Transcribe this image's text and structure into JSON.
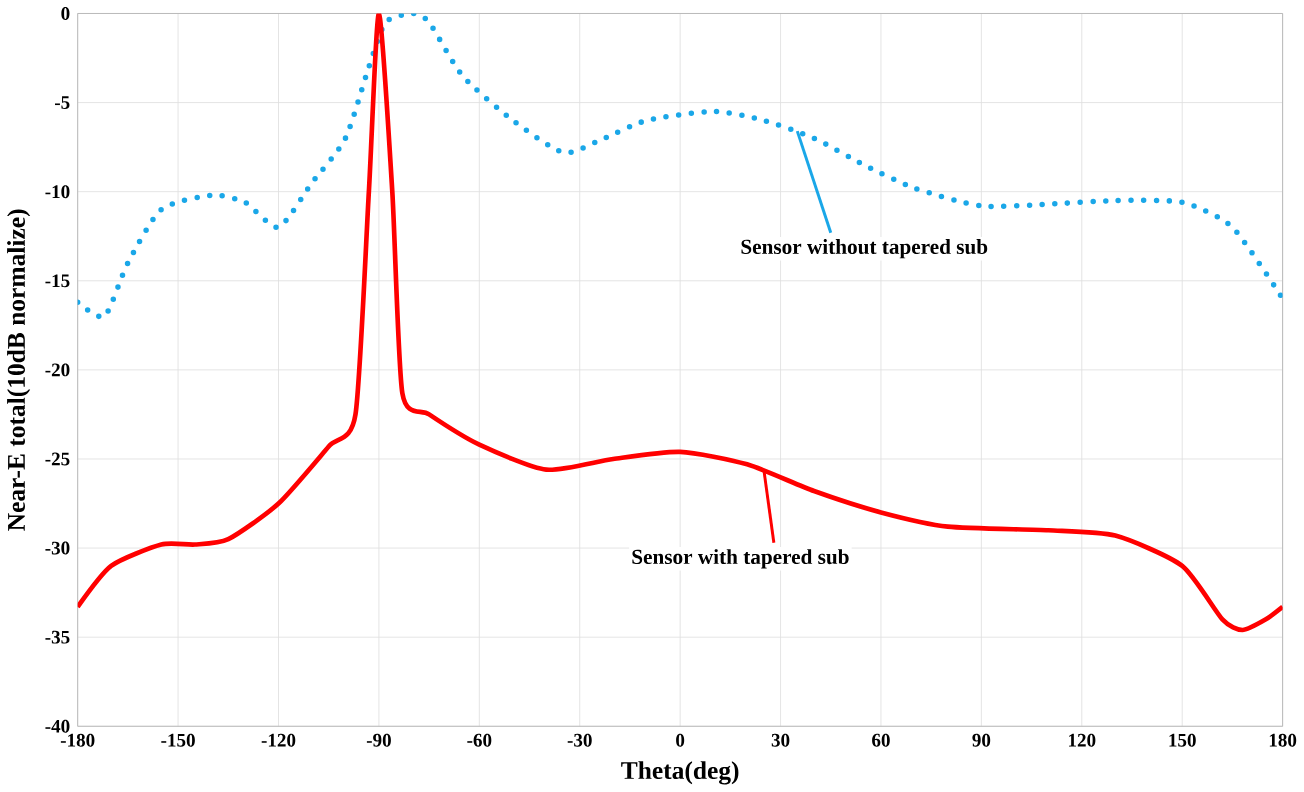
{
  "chart_data": {
    "type": "line",
    "xlabel": "Theta(deg)",
    "ylabel": "Near-E total(10dB normalize)",
    "xlim": [
      -180,
      180
    ],
    "ylim": [
      -40,
      0
    ],
    "xticks": [
      -180,
      -150,
      -120,
      -90,
      -60,
      -30,
      0,
      30,
      60,
      90,
      120,
      150,
      180
    ],
    "yticks": [
      -40,
      -35,
      -30,
      -25,
      -20,
      -15,
      -10,
      -5,
      0
    ],
    "grid": true,
    "series": [
      {
        "name": "Sensor without tapered sub",
        "color": "#1aa7e8",
        "line_style": "dotted",
        "x": [
          -180,
          -172,
          -165,
          -155,
          -140,
          -130,
          -120,
          -110,
          -100,
          -93,
          -88,
          -80,
          -75,
          -65,
          -50,
          -35,
          -25,
          -10,
          10,
          25,
          40,
          55,
          70,
          90,
          110,
          130,
          150,
          165,
          180
        ],
        "values": [
          -16.2,
          -17,
          -14,
          -11,
          -10.2,
          -10.6,
          -12,
          -9.5,
          -7,
          -3,
          -0.5,
          0,
          -0.5,
          -3.5,
          -6,
          -7.8,
          -7.2,
          -6,
          -5.5,
          -6,
          -7,
          -8.5,
          -9.8,
          -10.8,
          -10.7,
          -10.5,
          -10.6,
          -12,
          -16
        ]
      },
      {
        "name": "Sensor with tapered sub",
        "color": "#ff0000",
        "line_style": "solid",
        "x": [
          -180,
          -170,
          -155,
          -145,
          -135,
          -120,
          -105,
          -97,
          -93,
          -90,
          -86,
          -83,
          -75,
          -60,
          -40,
          -20,
          0,
          20,
          40,
          60,
          80,
          110,
          130,
          150,
          162,
          168,
          175,
          180
        ],
        "values": [
          -33.3,
          -31,
          -29.8,
          -29.8,
          -29.5,
          -27.5,
          -24.3,
          -22.5,
          -10,
          0,
          -10,
          -21.3,
          -22.5,
          -24.2,
          -25.6,
          -25,
          -24.6,
          -25.3,
          -26.8,
          -28,
          -28.8,
          -29,
          -29.3,
          -31,
          -34,
          -34.6,
          -34,
          -33.3
        ]
      }
    ]
  }
}
